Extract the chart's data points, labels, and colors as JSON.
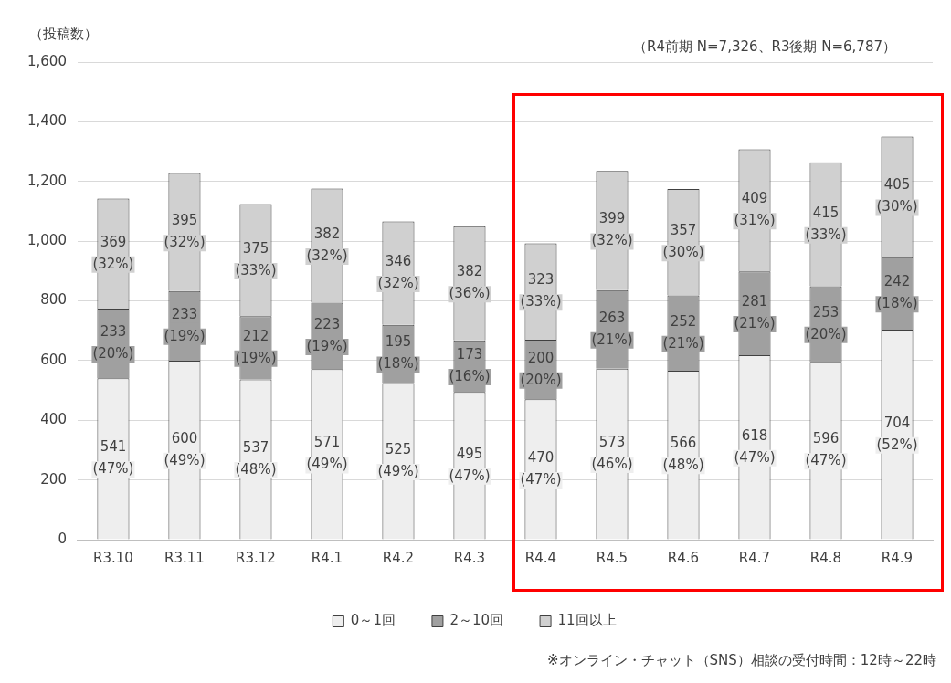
{
  "chart_data": {
    "type": "bar",
    "stacked": true,
    "ylabel": "（投稿数）",
    "subtitle": "（R4前期 N=7,326、R3後期 N=6,787）",
    "annotations": [
      "※オンライン・チャット（SNS）相談の受付時間：12時～22時"
    ],
    "categories": [
      "R3.10",
      "R3.11",
      "R3.12",
      "R4.1",
      "R4.2",
      "R4.3",
      "R4.4",
      "R4.5",
      "R4.6",
      "R4.7",
      "R4.8",
      "R4.9"
    ],
    "series": [
      {
        "name": "0～1回",
        "color": "#eeeeee",
        "values": [
          541,
          600,
          537,
          571,
          525,
          495,
          470,
          573,
          566,
          618,
          596,
          704
        ],
        "value_labels": [
          "541\n(47%)",
          "600\n(49%)",
          "537\n(48%)",
          "571\n(49%)",
          "525\n(49%)",
          "495\n(47%)",
          "470\n(47%)",
          "573\n(46%)",
          "566\n(48%)",
          "618\n(47%)",
          "596\n(47%)",
          "704\n(52%)"
        ]
      },
      {
        "name": "2～10回",
        "color": "#a0a0a0",
        "values": [
          233,
          233,
          212,
          223,
          195,
          173,
          200,
          263,
          252,
          281,
          253,
          242
        ],
        "value_labels": [
          "233\n(20%)",
          "233\n(19%)",
          "212\n(19%)",
          "223\n(19%)",
          "195\n(18%)",
          "173\n(16%)",
          "200\n(20%)",
          "263\n(21%)",
          "252\n(21%)",
          "281\n(21%)",
          "253\n(20%)",
          "242\n(18%)"
        ]
      },
      {
        "name": "11回以上",
        "color": "#d0d0d0",
        "values": [
          369,
          395,
          375,
          382,
          346,
          382,
          323,
          399,
          357,
          409,
          415,
          405
        ],
        "value_labels": [
          "369\n(32%)",
          "395\n(32%)",
          "375\n(33%)",
          "382\n(32%)",
          "346\n(32%)",
          "382\n(36%)",
          "323\n(33%)",
          "399\n(32%)",
          "357\n(30%)",
          "409\n(31%)",
          "415\n(33%)",
          "405\n(30%)"
        ]
      }
    ],
    "ylim": [
      0,
      1600
    ],
    "yticks": [
      {
        "value": 0,
        "label": "0"
      },
      {
        "value": 200,
        "label": "200"
      },
      {
        "value": 400,
        "label": "400"
      },
      {
        "value": 600,
        "label": "600"
      },
      {
        "value": 800,
        "label": "800"
      },
      {
        "value": 1000,
        "label": "1,000"
      },
      {
        "value": 1200,
        "label": "1,200"
      },
      {
        "value": 1400,
        "label": "1,400"
      },
      {
        "value": 1600,
        "label": "1,600"
      }
    ],
    "grid": "y",
    "legend": "bottom"
  }
}
